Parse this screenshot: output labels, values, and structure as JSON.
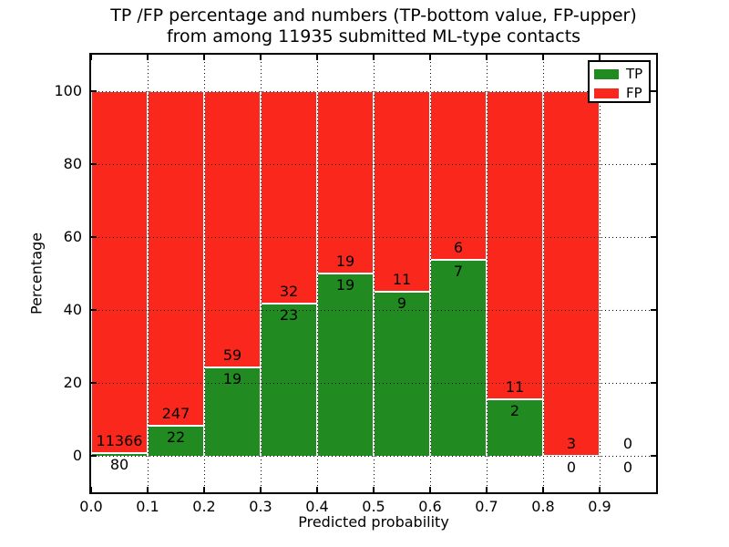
{
  "chart_data": {
    "type": "bar",
    "stacked": true,
    "normalization": "each bin stacked to 100 percent (TP% + FP% = 100)",
    "title": "TP /FP percentage and numbers (TP-bottom value, FP-upper)\nfrom among 11935 submitted ML-type contacts",
    "xlabel": "Predicted probability",
    "ylabel": "Percentage",
    "total_contacts": 11935,
    "xlim": [
      0.0,
      1.0
    ],
    "ylim": [
      -10,
      110
    ],
    "grid": "dotted black, drawn over bars",
    "x_ticks": [
      0.0,
      0.1,
      0.2,
      0.3,
      0.4,
      0.5,
      0.6,
      0.7,
      0.8,
      0.9
    ],
    "x_tick_labels": [
      "0.0",
      "0.1",
      "0.2",
      "0.3",
      "0.4",
      "0.5",
      "0.6",
      "0.7",
      "0.8",
      "0.9"
    ],
    "y_ticks": [
      0,
      20,
      40,
      60,
      80,
      100
    ],
    "y_tick_labels": [
      "0",
      "20",
      "40",
      "60",
      "80",
      "100"
    ],
    "bins": [
      {
        "x_range": [
          0.0,
          0.1
        ],
        "tp": 80,
        "fp": 11366
      },
      {
        "x_range": [
          0.1,
          0.2
        ],
        "tp": 22,
        "fp": 247
      },
      {
        "x_range": [
          0.2,
          0.3
        ],
        "tp": 19,
        "fp": 59
      },
      {
        "x_range": [
          0.3,
          0.4
        ],
        "tp": 23,
        "fp": 32
      },
      {
        "x_range": [
          0.4,
          0.5
        ],
        "tp": 19,
        "fp": 19
      },
      {
        "x_range": [
          0.5,
          0.6
        ],
        "tp": 9,
        "fp": 11
      },
      {
        "x_range": [
          0.6,
          0.7
        ],
        "tp": 7,
        "fp": 6
      },
      {
        "x_range": [
          0.7,
          0.8
        ],
        "tp": 2,
        "fp": 11
      },
      {
        "x_range": [
          0.8,
          0.9
        ],
        "tp": 0,
        "fp": 3
      },
      {
        "x_range": [
          0.9,
          1.0
        ],
        "tp": 0,
        "fp": 0
      }
    ],
    "colors": {
      "tp": "#218a21",
      "fp": "#f9271c",
      "bar_edge": "#ffffff",
      "text": "#000000",
      "background": "#ffffff"
    },
    "legend": {
      "position": "upper right",
      "items": [
        {
          "key": "tp",
          "label": "TP"
        },
        {
          "key": "fp",
          "label": "FP"
        }
      ]
    }
  }
}
